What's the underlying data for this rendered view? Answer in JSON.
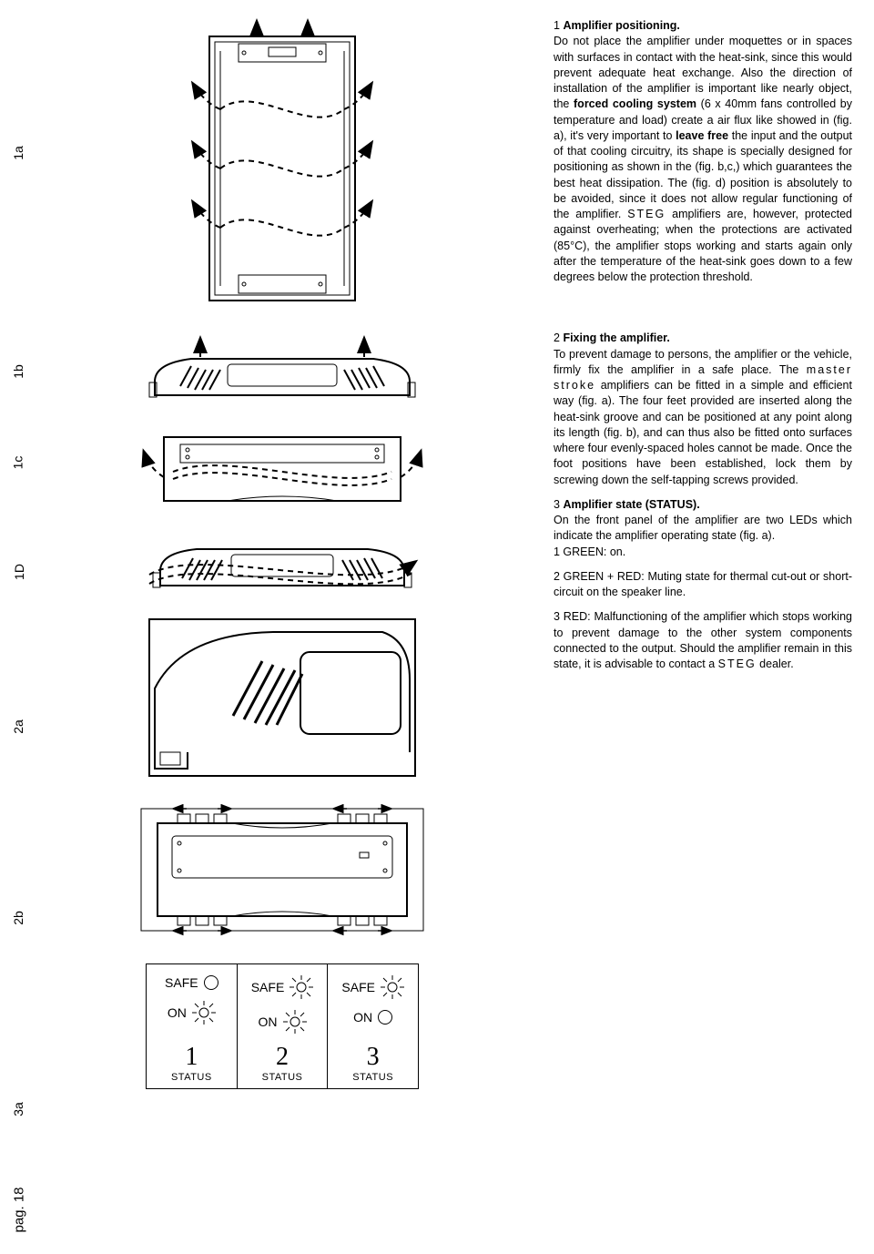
{
  "rail": {
    "labels": [
      "1a",
      "1b",
      "1c",
      "1D",
      "2a",
      "2b",
      "3a"
    ],
    "page": "pag. 18"
  },
  "sections": {
    "s1": {
      "num": "1",
      "title": "Amplifier positioning.",
      "body": "Do not place the amplifier under moquettes or in spaces with surfaces in contact with the heat-sink, since this would prevent adequate heat exchange. Also the direction of installation of the amplifier is important like nearly object, the forced cooling system (6 x 40mm fans controlled by temperature and load) create a air flux like showed in (fig. a), it's very important to leave free the input and the output of that cooling circuitry, its shape is specially designed for positioning as shown in the (fig. b,c,) which guarantees the best heat dissipation. The (fig. d) position is absolutely to be avoided, since it does not allow regular functioning of the amplifier. STEG amplifiers are, however, protected against overheating; when the protections are activated (85°C), the amplifier stops working and starts again only after the temperature of the heat-sink goes down to a few degrees below the protection threshold.",
      "bold_inline": {
        "forced": "forced cooling system",
        "leave": "leave free"
      },
      "steg": "STEG"
    },
    "s2": {
      "num": "2",
      "title": "Fixing the amplifier.",
      "body": "To prevent damage to persons, the amplifier or the vehicle, firmly fix the amplifier in a safe place. The master stroke amplifiers can be fitted in a simple and efficient way (fig. a). The four feet provided are inserted along the heat-sink groove and can be positioned at any point along its length (fig. b), and can thus also be fitted onto surfaces where four evenly-spaced holes cannot be made. Once the foot positions have been established, lock them by screwing down the self-tapping screws provided.",
      "ms": "master stroke"
    },
    "s3": {
      "num": "3",
      "title": "Amplifier state (STATUS).",
      "intro": "On the front panel of the amplifier are two LEDs which indicate the amplifier operating state (fig. a).",
      "items": {
        "i1": "1   GREEN: on.",
        "i2": "2   GREEN + RED: Muting state for thermal cut-out or short-circuit on the speaker line.",
        "i3": "3   RED: Malfunctioning of the amplifier which stops working to prevent damage to the other system components connected to the output. Should the amplifier remain in this state, it is advisable to contact a STEG dealer."
      }
    }
  },
  "status": {
    "safe": "SAFE",
    "on": "ON",
    "caption": "STATUS",
    "cols": [
      {
        "n": "1",
        "safe_on": false,
        "on_on": true
      },
      {
        "n": "2",
        "safe_on": true,
        "on_on": true
      },
      {
        "n": "3",
        "safe_on": true,
        "on_on": false
      }
    ]
  },
  "colors": {
    "stroke": "#000000",
    "dash": "#000000",
    "bg": "#ffffff"
  }
}
